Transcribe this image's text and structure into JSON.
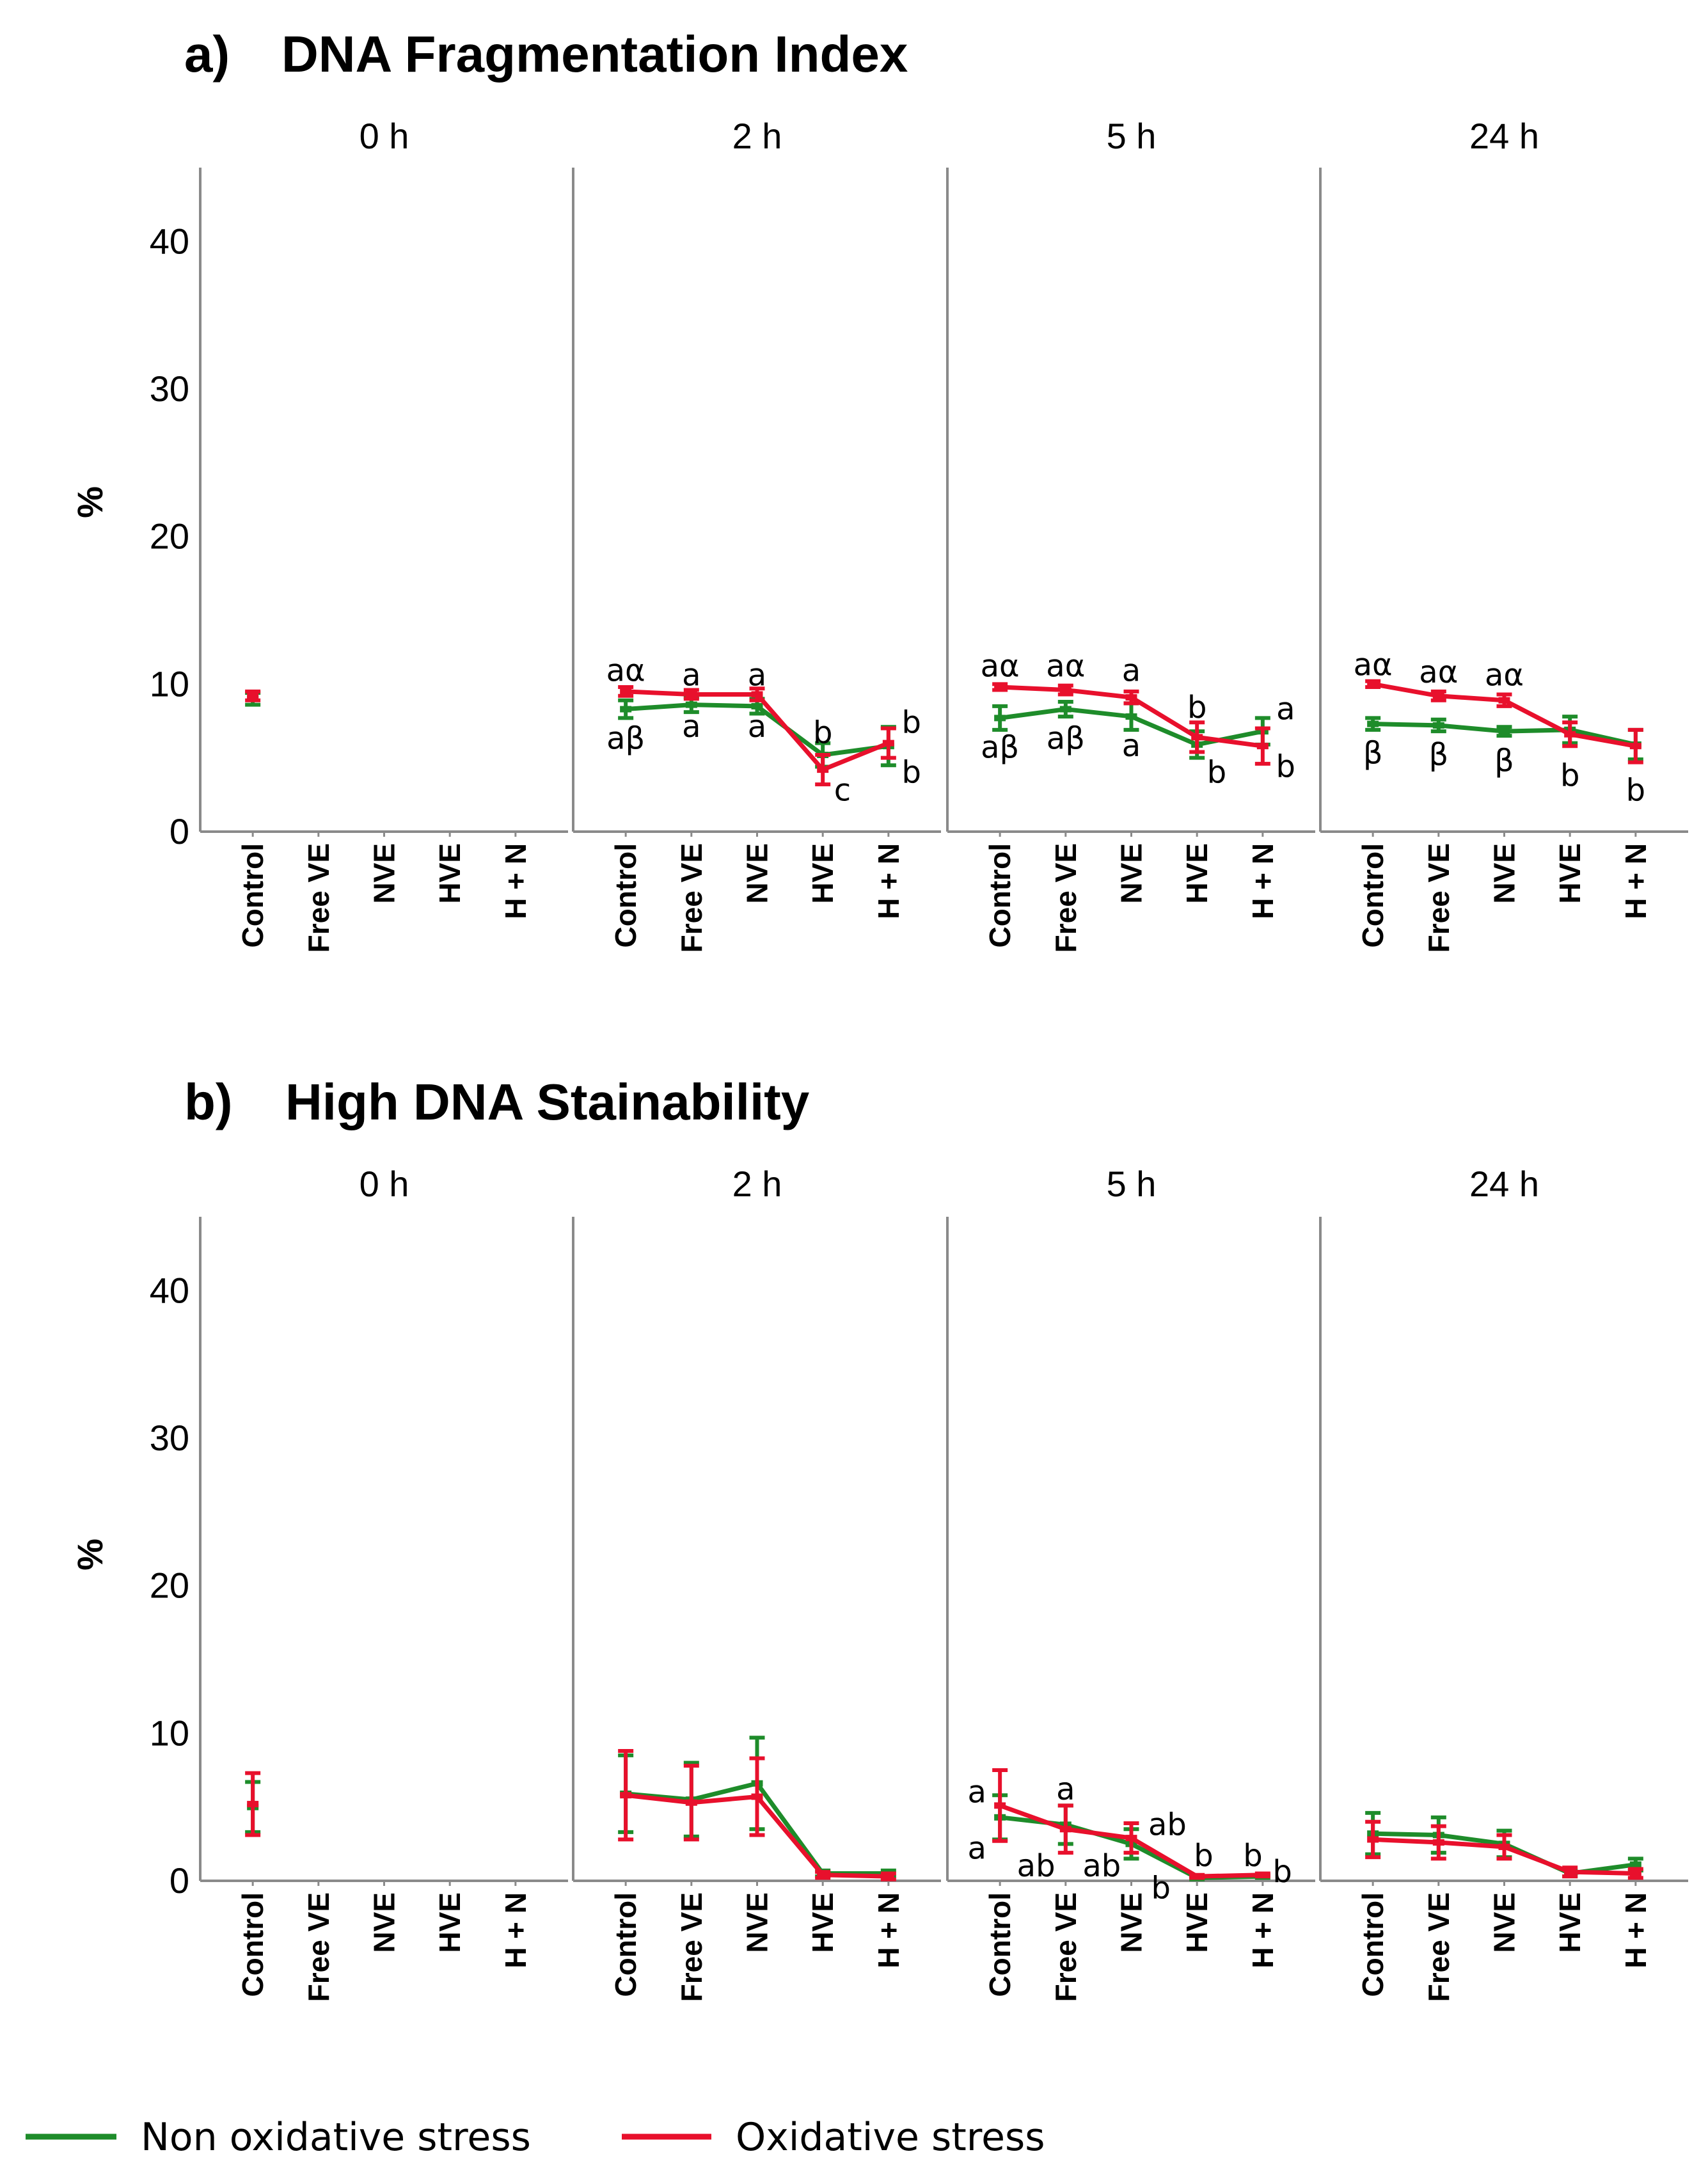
{
  "colors": {
    "non_oxidative": "#1e8c2a",
    "oxidative": "#e8102c",
    "axis": "#8a8a8a"
  },
  "legend": [
    {
      "name": "Non oxidative stress",
      "color": "#1e8c2a"
    },
    {
      "name": "Oxidative stress",
      "color": "#e8102c"
    }
  ],
  "chart_data": [
    {
      "type": "line",
      "title": "DNA Fragmentation Index",
      "label": "a)",
      "ylabel": "%",
      "ylim": [
        0,
        45
      ],
      "yticks": [
        0,
        10,
        20,
        30,
        40
      ],
      "categories": [
        "Control",
        "Free VE",
        "NVE",
        "HVE",
        "H + N"
      ],
      "panels": [
        {
          "title": "0 h",
          "series": [
            {
              "name": "Non oxidative stress",
              "values": [
                9.0,
                null,
                null,
                null,
                null
              ],
              "err": [
                0.4,
                null,
                null,
                null,
                null
              ]
            },
            {
              "name": "Oxidative stress",
              "values": [
                9.2,
                null,
                null,
                null,
                null
              ],
              "err": [
                0.3,
                null,
                null,
                null,
                null
              ]
            }
          ],
          "annotations": []
        },
        {
          "title": "2 h",
          "series": [
            {
              "name": "Non oxidative stress",
              "values": [
                8.3,
                8.6,
                8.5,
                5.2,
                5.8
              ],
              "err": [
                0.6,
                0.5,
                0.5,
                0.8,
                1.3
              ]
            },
            {
              "name": "Oxidative stress",
              "values": [
                9.5,
                9.3,
                9.3,
                4.2,
                6.0
              ],
              "err": [
                0.3,
                0.3,
                0.4,
                1.0,
                1.0
              ]
            }
          ],
          "annotations": [
            {
              "cat": 0,
              "y": 10.9,
              "text": "aα"
            },
            {
              "cat": 0,
              "y": 6.3,
              "text": "aβ"
            },
            {
              "cat": 1,
              "y": 10.6,
              "text": "a"
            },
            {
              "cat": 1,
              "y": 7.1,
              "text": "a"
            },
            {
              "cat": 2,
              "y": 10.6,
              "text": "a"
            },
            {
              "cat": 2,
              "y": 7.1,
              "text": "a"
            },
            {
              "cat": 3,
              "y": 6.7,
              "text": "b"
            },
            {
              "cat": 3,
              "y": 2.8,
              "text": "c",
              "dx": 0.3
            },
            {
              "cat": 4,
              "y": 7.4,
              "text": "b",
              "dx": 0.35
            },
            {
              "cat": 4,
              "y": 4.0,
              "text": "b",
              "dx": 0.35
            }
          ]
        },
        {
          "title": "5 h",
          "series": [
            {
              "name": "Non oxidative stress",
              "values": [
                7.7,
                8.3,
                7.8,
                5.9,
                6.8
              ],
              "err": [
                0.8,
                0.5,
                0.9,
                0.9,
                0.9
              ]
            },
            {
              "name": "Oxidative stress",
              "values": [
                9.8,
                9.6,
                9.1,
                6.4,
                5.8
              ],
              "err": [
                0.2,
                0.3,
                0.4,
                1.0,
                1.2
              ]
            }
          ],
          "annotations": [
            {
              "cat": 0,
              "y": 11.2,
              "text": "aα"
            },
            {
              "cat": 0,
              "y": 5.7,
              "text": "aβ"
            },
            {
              "cat": 1,
              "y": 11.2,
              "text": "aα"
            },
            {
              "cat": 1,
              "y": 6.3,
              "text": "aβ"
            },
            {
              "cat": 2,
              "y": 10.9,
              "text": "a"
            },
            {
              "cat": 2,
              "y": 5.8,
              "text": "a"
            },
            {
              "cat": 3,
              "y": 8.4,
              "text": "b"
            },
            {
              "cat": 3,
              "y": 4.0,
              "text": "b",
              "dx": 0.3
            },
            {
              "cat": 4,
              "y": 8.3,
              "text": "a",
              "dx": 0.35
            },
            {
              "cat": 4,
              "y": 4.4,
              "text": "b",
              "dx": 0.35
            }
          ]
        },
        {
          "title": "24 h",
          "series": [
            {
              "name": "Non oxidative stress",
              "values": [
                7.3,
                7.2,
                6.8,
                6.9,
                5.9
              ],
              "err": [
                0.4,
                0.4,
                0.3,
                0.9,
                1.0
              ]
            },
            {
              "name": "Oxidative stress",
              "values": [
                10.0,
                9.2,
                8.9,
                6.6,
                5.8
              ],
              "err": [
                0.2,
                0.3,
                0.4,
                0.8,
                1.1
              ]
            }
          ],
          "annotations": [
            {
              "cat": 0,
              "y": 11.3,
              "text": "aα"
            },
            {
              "cat": 0,
              "y": 5.3,
              "text": "β"
            },
            {
              "cat": 1,
              "y": 10.8,
              "text": "aα"
            },
            {
              "cat": 1,
              "y": 5.2,
              "text": "β"
            },
            {
              "cat": 2,
              "y": 10.6,
              "text": "aα"
            },
            {
              "cat": 2,
              "y": 4.8,
              "text": "β"
            },
            {
              "cat": 3,
              "y": 3.8,
              "text": "b"
            },
            {
              "cat": 4,
              "y": 2.8,
              "text": "b"
            }
          ]
        }
      ]
    },
    {
      "type": "line",
      "title": "High DNA Stainability",
      "label": "b)",
      "ylabel": "%",
      "ylim": [
        0,
        45
      ],
      "yticks": [
        0,
        10,
        20,
        30,
        40
      ],
      "categories": [
        "Control",
        "Free VE",
        "NVE",
        "HVE",
        "H + N"
      ],
      "panels": [
        {
          "title": "0 h",
          "series": [
            {
              "name": "Non oxidative stress",
              "values": [
                5.0,
                null,
                null,
                null,
                null
              ],
              "err": [
                1.7,
                null,
                null,
                null,
                null
              ]
            },
            {
              "name": "Oxidative stress",
              "values": [
                5.2,
                null,
                null,
                null,
                null
              ],
              "err": [
                2.1,
                null,
                null,
                null,
                null
              ]
            }
          ],
          "annotations": []
        },
        {
          "title": "2 h",
          "series": [
            {
              "name": "Non oxidative stress",
              "values": [
                5.9,
                5.5,
                6.6,
                0.5,
                0.5
              ],
              "err": [
                2.6,
                2.5,
                3.1,
                0.2,
                0.2
              ]
            },
            {
              "name": "Oxidative stress",
              "values": [
                5.8,
                5.3,
                5.7,
                0.4,
                0.3
              ],
              "err": [
                3.0,
                2.5,
                2.6,
                0.2,
                0.2
              ]
            }
          ],
          "annotations": []
        },
        {
          "title": "5 h",
          "series": [
            {
              "name": "Non oxidative stress",
              "values": [
                4.3,
                3.8,
                2.5,
                0.2,
                0.3
              ],
              "err": [
                1.5,
                1.3,
                1.0,
                0.1,
                0.1
              ]
            },
            {
              "name": "Oxidative stress",
              "values": [
                5.1,
                3.5,
                2.9,
                0.3,
                0.4
              ],
              "err": [
                2.4,
                1.6,
                1.0,
                0.1,
                0.1
              ]
            }
          ],
          "annotations": [
            {
              "cat": 0,
              "y": 6.0,
              "text": "a",
              "dx": -0.35
            },
            {
              "cat": 0,
              "y": 2.2,
              "text": "a",
              "dx": -0.35
            },
            {
              "cat": 1,
              "y": 6.2,
              "text": "a"
            },
            {
              "cat": 1,
              "y": 1.0,
              "text": "ab",
              "dx": -0.45
            },
            {
              "cat": 2,
              "y": 1.0,
              "text": "ab",
              "dx": -0.45
            },
            {
              "cat": 2,
              "y": 3.8,
              "text": "ab",
              "dx": 0.55
            },
            {
              "cat": 3,
              "y": -0.5,
              "text": "b",
              "dx": -0.55
            },
            {
              "cat": 3,
              "y": 1.7,
              "text": "b",
              "dx": 0.1
            },
            {
              "cat": 4,
              "y": 1.7,
              "text": "b",
              "dx": -0.15
            },
            {
              "cat": 4,
              "y": 0.6,
              "text": "b",
              "dx": 0.3
            }
          ]
        },
        {
          "title": "24 h",
          "series": [
            {
              "name": "Non oxidative stress",
              "values": [
                3.2,
                3.1,
                2.5,
                0.5,
                1.1
              ],
              "err": [
                1.4,
                1.2,
                0.9,
                0.2,
                0.4
              ]
            },
            {
              "name": "Oxidative stress",
              "values": [
                2.8,
                2.6,
                2.3,
                0.6,
                0.5
              ],
              "err": [
                1.2,
                1.1,
                0.8,
                0.3,
                0.3
              ]
            }
          ],
          "annotations": []
        }
      ]
    }
  ]
}
